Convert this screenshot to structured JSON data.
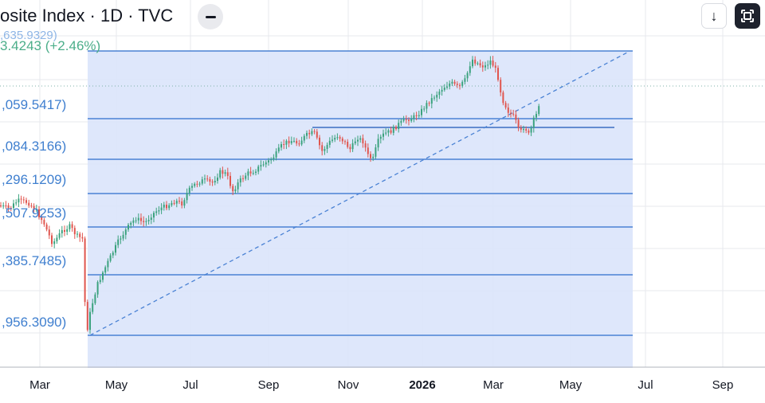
{
  "header": {
    "title": "osite Index · 1D · TVC",
    "value_line": ",635.9329)",
    "change_line": "3.4243 (+2.46%)"
  },
  "toolbar": {
    "download_icon": "download-arrow-icon",
    "fullscreen_icon": "fullscreen-icon"
  },
  "colors": {
    "up": "#3ba27e",
    "down": "#e0554e",
    "fib_fill": "#dbe5fb",
    "fib_line": "#4a82d4",
    "trend_line": "#4a82d4",
    "level_text": "#3f7fcf",
    "grid": "#e7e9ee",
    "axis_text": "#131722"
  },
  "chart_data": {
    "type": "candlestick",
    "x_axis_labels": [
      "Mar",
      "May",
      "Jul",
      "Sep",
      "Nov",
      "2026",
      "Mar",
      "May",
      "Jul",
      "Sep"
    ],
    "fib_level_labels": [
      ",059.5417)",
      ",084.3166)",
      ",296.1209)",
      ",507.9253)",
      ",385.7485)",
      ",956.3090)"
    ],
    "drawings": [
      "fibonacci-retracement",
      "dashed-trend-line",
      "horizontal-line",
      "last-price-dotted-line"
    ],
    "grid": true,
    "price_path_description_free": true
  }
}
